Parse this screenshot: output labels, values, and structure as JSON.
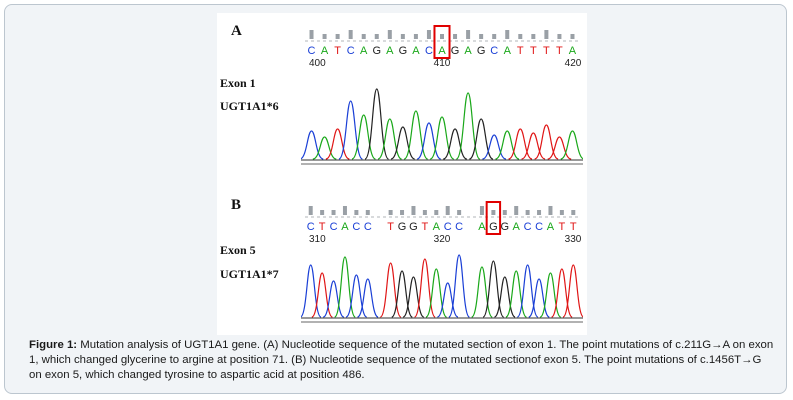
{
  "panels": [
    {
      "letter": "A",
      "exon_label": "Exon 1",
      "allele_label": "UGT1A1*6",
      "sequence": "CATCAGAGACAGAGCATTTTA",
      "positions": [
        "400",
        "410",
        "420"
      ],
      "highlight_index": 10
    },
    {
      "letter": "B",
      "exon_label": "Exon 5",
      "allele_label": "UGT1A1*7",
      "sequence": "CTCACC TGGTACC AGGACCATT",
      "positions": [
        "310",
        "320",
        "330"
      ],
      "highlight_index": 16
    }
  ],
  "colors": {
    "A": "#1aa81a",
    "C": "#1a3fd6",
    "G": "#222222",
    "T": "#e01616",
    "highlight": "#e00000",
    "frame_bg": "#f1f4f7"
  },
  "caption": {
    "label": "Figure 1:",
    "text": " Mutation analysis of UGT1A1 gene. (A) Nucleotide sequence of the mutated section of exon 1. The point mutations of c.211G→A on exon 1, which changed glycerine to argine at position 71. (B) Nucleotide sequence of the mutated sectionof exon 5. The point mutations of c.1456T→G on exon 5, which changed tyrosine to aspartic acid at position 486."
  }
}
